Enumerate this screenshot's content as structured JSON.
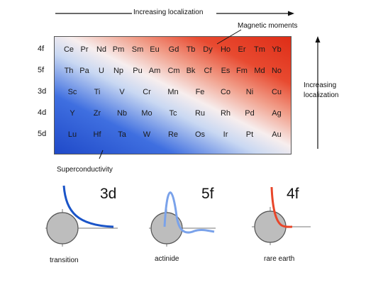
{
  "top_arrow_label": "Increasing localization",
  "right_arrow_label_1": "Increasing",
  "right_arrow_label_2": "localization",
  "magnetic_label": "Magnetic moments",
  "supercond_label": "Superconductivity",
  "rows": [
    {
      "shell": "4f",
      "elements": [
        "Ce",
        "Pr",
        "Nd",
        "Pm",
        "Sm",
        "Eu",
        "Gd",
        "Tb",
        "Dy",
        "Ho",
        "Er",
        "Tm",
        "Yb"
      ]
    },
    {
      "shell": "5f",
      "elements": [
        "Th",
        "Pa",
        "U",
        "Np",
        "Pu",
        "Am",
        "Cm",
        "Bk",
        "Cf",
        "Es",
        "Fm",
        "Md",
        "No"
      ]
    },
    {
      "shell": "3d",
      "elements": [
        "Sc",
        "Ti",
        "V",
        "Cr",
        "Mn",
        "Fe",
        "Co",
        "Ni",
        "Cu"
      ]
    },
    {
      "shell": "4d",
      "elements": [
        "Y",
        "Zr",
        "Nb",
        "Mo",
        "Tc",
        "Ru",
        "Rh",
        "Pd",
        "Ag"
      ]
    },
    {
      "shell": "5d",
      "elements": [
        "Lu",
        "Hf",
        "Ta",
        "W",
        "Re",
        "Os",
        "Ir",
        "Pt",
        "Au"
      ]
    }
  ],
  "panels": [
    {
      "shell": "3d",
      "caption": "transition",
      "color": "#1a54c8"
    },
    {
      "shell": "5f",
      "caption": "actinide",
      "color": "#7aa2ea"
    },
    {
      "shell": "4f",
      "caption": "rare earth",
      "color": "#e8462a"
    }
  ]
}
